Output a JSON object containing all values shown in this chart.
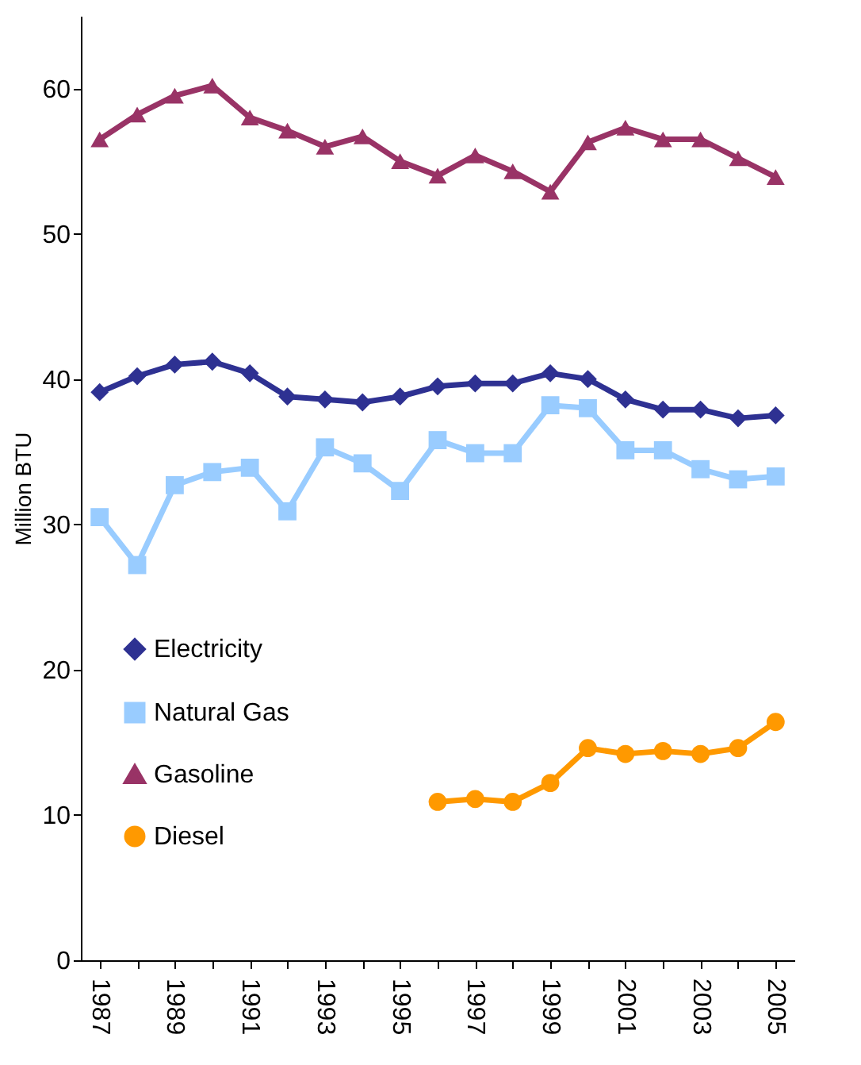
{
  "chart_data": {
    "type": "line",
    "ylabel": "Million BTU",
    "categories": [
      "1987",
      null,
      "1989",
      null,
      "1991",
      null,
      "1993",
      null,
      "1995",
      null,
      "1997",
      null,
      "1999",
      null,
      "2001",
      null,
      "2003",
      null,
      "2005"
    ],
    "series": [
      {
        "name": "Electricity",
        "color": "#2e3192",
        "marker": "diamond",
        "values": [
          39.1,
          40.2,
          41.0,
          41.2,
          40.4,
          38.8,
          38.6,
          38.4,
          38.8,
          39.5,
          39.7,
          39.7,
          40.4,
          40.0,
          38.6,
          37.9,
          37.9,
          37.3,
          37.5
        ]
      },
      {
        "name": "Natural Gas",
        "color": "#99ccff",
        "marker": "square",
        "values": [
          30.5,
          27.2,
          32.7,
          33.6,
          33.9,
          30.9,
          35.3,
          34.2,
          32.3,
          35.8,
          34.9,
          34.9,
          38.2,
          38.0,
          35.1,
          35.1,
          33.8,
          33.1,
          33.3
        ]
      },
      {
        "name": "Gasoline",
        "color": "#993366",
        "marker": "triangle",
        "values": [
          56.5,
          58.2,
          59.5,
          60.2,
          58.0,
          57.1,
          56.0,
          56.7,
          55.0,
          54.0,
          55.4,
          54.3,
          52.9,
          56.3,
          57.3,
          56.5,
          56.5,
          55.2,
          53.9
        ]
      },
      {
        "name": "Diesel",
        "color": "#ff9900",
        "marker": "circle",
        "values": [
          null,
          null,
          null,
          null,
          null,
          null,
          null,
          null,
          null,
          10.9,
          11.1,
          10.9,
          12.2,
          14.6,
          14.2,
          14.4,
          14.2,
          14.6,
          16.4
        ]
      }
    ],
    "ylim": [
      0,
      65
    ],
    "yticks": [
      0,
      10,
      20,
      30,
      40,
      50,
      60
    ],
    "grid": false,
    "legend": "bottom left",
    "line_style": "solid"
  }
}
